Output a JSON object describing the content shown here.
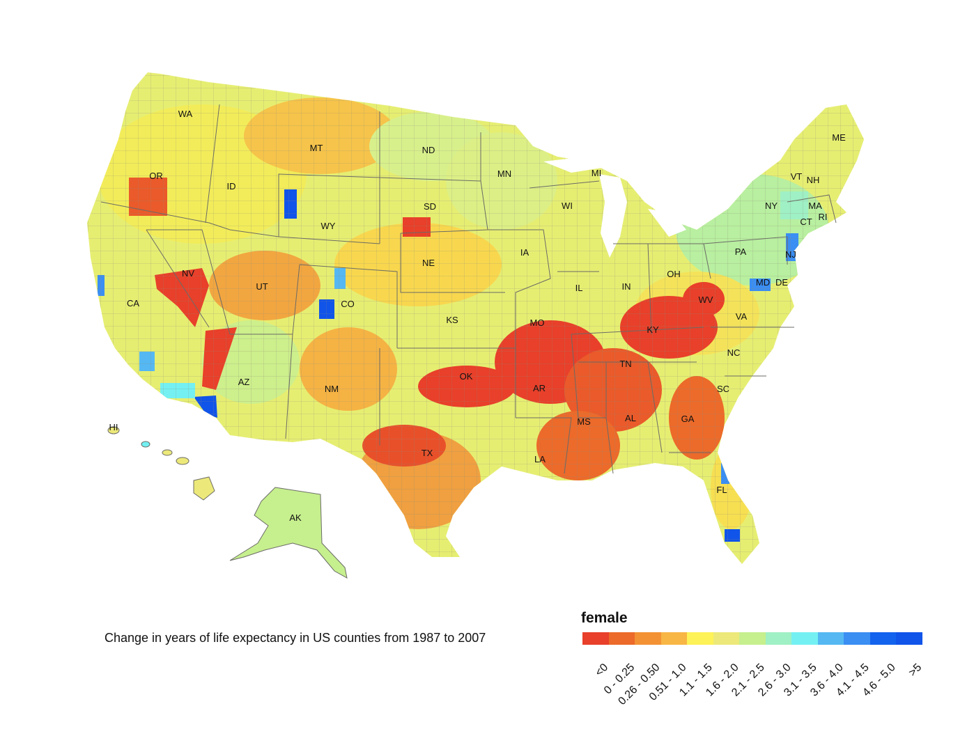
{
  "map": {
    "state_labels": [
      "WA",
      "OR",
      "CA",
      "ID",
      "NV",
      "MT",
      "WY",
      "UT",
      "AZ",
      "CO",
      "NM",
      "ND",
      "SD",
      "NE",
      "KS",
      "OK",
      "TX",
      "MN",
      "IA",
      "MO",
      "AR",
      "LA",
      "WI",
      "IL",
      "MS",
      "MI",
      "IN",
      "KY",
      "TN",
      "AL",
      "OH",
      "WV",
      "GA",
      "FL",
      "SC",
      "NC",
      "VA",
      "PA",
      "NY",
      "MD",
      "DE",
      "NJ",
      "CT",
      "RI",
      "MA",
      "VT",
      "NH",
      "ME",
      "AK",
      "HI"
    ],
    "fill_colors": [
      "#e8402a",
      "#ec6a2a",
      "#f39234",
      "#f8b645",
      "#fdf257",
      "#ece97a",
      "#c6ef8e",
      "#9ff0c4",
      "#74f0f2",
      "#55b8f2",
      "#3b8ef2",
      "#1363ee",
      "#1054e9"
    ]
  },
  "caption": "Change in years of life expectancy in US counties from 1987 to 2007",
  "legend": {
    "title": "female",
    "bins": [
      {
        "label": "<0",
        "color": "#e8402a"
      },
      {
        "label": "0 - 0.25",
        "color": "#ec6a2a"
      },
      {
        "label": "0.26 - 0.50",
        "color": "#f39234"
      },
      {
        "label": "0.51 - 1.0",
        "color": "#f8b645"
      },
      {
        "label": "1.1 - 1.5",
        "color": "#fdf257"
      },
      {
        "label": "1.6 - 2.0",
        "color": "#ece97a"
      },
      {
        "label": "2.1 - 2.5",
        "color": "#c6ef8e"
      },
      {
        "label": "2.6 - 3.0",
        "color": "#9ff0c4"
      },
      {
        "label": "3.1 - 3.5",
        "color": "#74f0f2"
      },
      {
        "label": "3.6 - 4.0",
        "color": "#55b8f2"
      },
      {
        "label": "4.1 - 4.5",
        "color": "#3b8ef2"
      },
      {
        "label": "4.6 - 5.0",
        "color": "#1363ee"
      },
      {
        "label": ">5",
        "color": "#1054e9"
      }
    ]
  }
}
